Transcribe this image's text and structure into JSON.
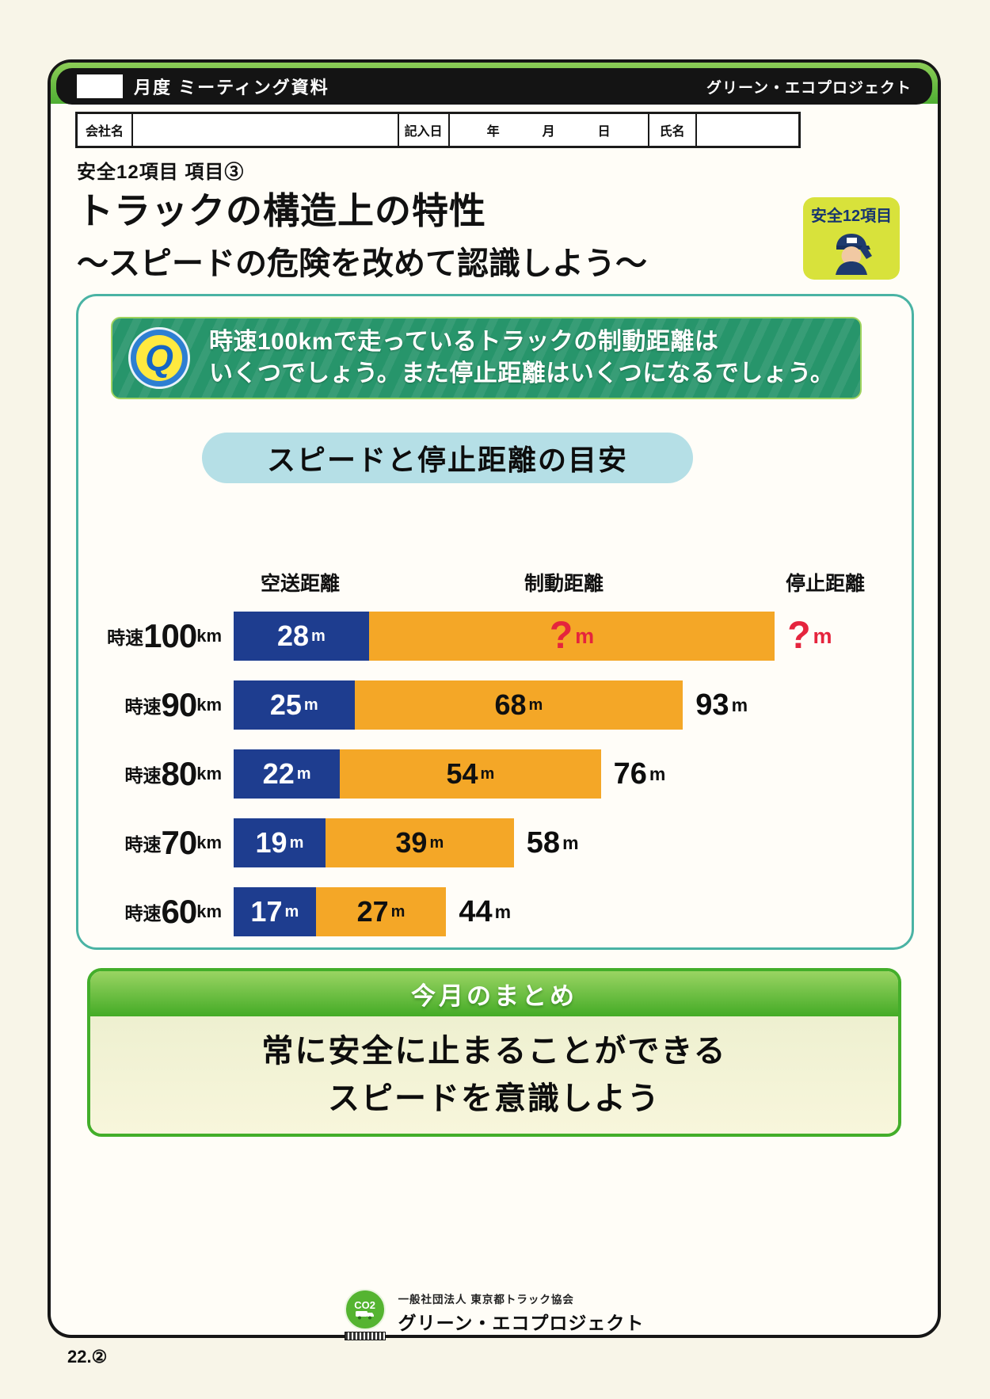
{
  "header": {
    "title": "月度 ミーティング資料",
    "brand": "グリーン・エコプロジェクト"
  },
  "form": {
    "company_label": "会社名",
    "date_label": "記入日",
    "year_label": "年",
    "month_label": "月",
    "day_label": "日",
    "name_label": "氏名"
  },
  "title_block": {
    "category": "安全12項目 項目③",
    "title": "トラックの構造上の特性",
    "subtitle": "〜スピードの危険を改めて認識しよう〜",
    "badge_label": "安全12項目"
  },
  "question": {
    "icon_letter": "Q",
    "line1": "時速100kmで走っているトラックの制動距離は",
    "line2": "いくつでしょう。また停止距離はいくつになるでしょう。"
  },
  "chart_data": {
    "type": "bar",
    "title": "スピードと停止距離の目安",
    "column_headers": [
      "空送距離",
      "制動距離",
      "停止距離"
    ],
    "row_label_prefix": "時速",
    "row_label_unit": "km",
    "value_unit": "m",
    "series_colors": {
      "free_running": "#1e3d8f",
      "braking": "#f4a727"
    },
    "unknown_color": "#e5243d",
    "rows": [
      {
        "speed": 100,
        "free_running_m": 28,
        "braking_m": 84,
        "stopping_m": 112,
        "labels": {
          "free": "28",
          "braking": "?",
          "stopping": "?"
        },
        "braking_unknown": true
      },
      {
        "speed": 90,
        "free_running_m": 25,
        "braking_m": 68,
        "stopping_m": 93,
        "labels": {
          "free": "25",
          "braking": "68",
          "stopping": "93"
        },
        "braking_unknown": false
      },
      {
        "speed": 80,
        "free_running_m": 22,
        "braking_m": 54,
        "stopping_m": 76,
        "labels": {
          "free": "22",
          "braking": "54",
          "stopping": "76"
        },
        "braking_unknown": false
      },
      {
        "speed": 70,
        "free_running_m": 19,
        "braking_m": 39,
        "stopping_m": 58,
        "labels": {
          "free": "19",
          "braking": "39",
          "stopping": "58"
        },
        "braking_unknown": false
      },
      {
        "speed": 60,
        "free_running_m": 17,
        "braking_m": 27,
        "stopping_m": 44,
        "labels": {
          "free": "17",
          "braking": "27",
          "stopping": "44"
        },
        "braking_unknown": false
      }
    ]
  },
  "summary": {
    "heading": "今月のまとめ",
    "line1": "常に安全に止まることができる",
    "line2": "スピードを意識しよう"
  },
  "footer": {
    "logo_text": "CO2",
    "org": "一般社団法人 東京都トラック協会",
    "brand": "グリーン・エコプロジェクト"
  },
  "page": {
    "page_number": "22.②"
  },
  "colors": {
    "navy_bar": "#1e3d8f",
    "orange_bar": "#f4a727",
    "alert_red": "#e5243d",
    "banner_green": "#27956b",
    "pill_blue": "#b5dfe6",
    "summary_green": "#44ab26",
    "badge_yellow": "#d8e23b",
    "frame_top_green": "#5cb63a"
  }
}
